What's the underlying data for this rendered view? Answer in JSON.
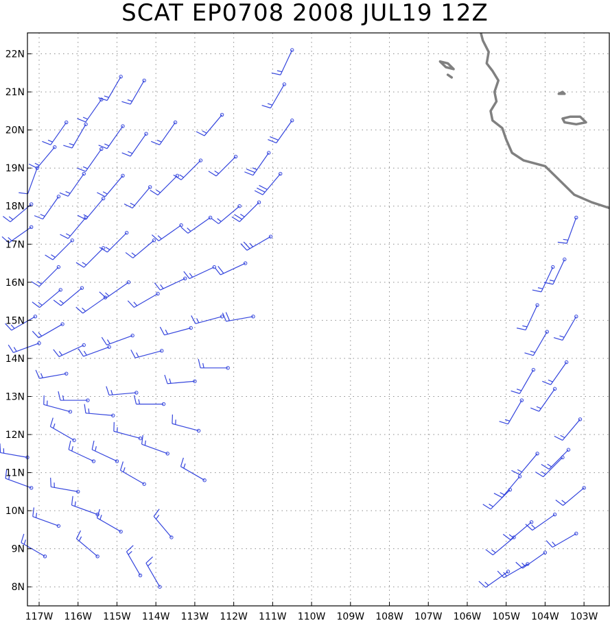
{
  "title": "SCAT EP0708 2008 JUL19 12Z",
  "map": {
    "lon_range": [
      -117.3,
      -102.35
    ],
    "lat_range": [
      7.5,
      22.55
    ],
    "grid": true,
    "barb_color": "#3344dd",
    "coast_color": "#808080",
    "lat_ticks": [
      {
        "value": 22,
        "label": "22N"
      },
      {
        "value": 21,
        "label": "21N"
      },
      {
        "value": 20,
        "label": "20N"
      },
      {
        "value": 19,
        "label": "19N"
      },
      {
        "value": 18,
        "label": "18N"
      },
      {
        "value": 17,
        "label": "17N"
      },
      {
        "value": 16,
        "label": "16N"
      },
      {
        "value": 15,
        "label": "15N"
      },
      {
        "value": 14,
        "label": "14N"
      },
      {
        "value": 13,
        "label": "13N"
      },
      {
        "value": 12,
        "label": "12N"
      },
      {
        "value": 11,
        "label": "11N"
      },
      {
        "value": 10,
        "label": "10N"
      },
      {
        "value": 9,
        "label": "9N"
      },
      {
        "value": 8,
        "label": "8N"
      }
    ],
    "lon_ticks": [
      {
        "value": -117,
        "label": "117W"
      },
      {
        "value": -116,
        "label": "116W"
      },
      {
        "value": -115,
        "label": "115W"
      },
      {
        "value": -114,
        "label": "114W"
      },
      {
        "value": -113,
        "label": "113W"
      },
      {
        "value": -112,
        "label": "112W"
      },
      {
        "value": -111,
        "label": "111W"
      },
      {
        "value": -110,
        "label": "110W"
      },
      {
        "value": -109,
        "label": "109W"
      },
      {
        "value": -108,
        "label": "108W"
      },
      {
        "value": -107,
        "label": "107W"
      },
      {
        "value": -106,
        "label": "106W"
      },
      {
        "value": -105,
        "label": "105W"
      },
      {
        "value": -104,
        "label": "104W"
      },
      {
        "value": -103,
        "label": "103W"
      }
    ],
    "coastline": [
      [
        -105.65,
        22.55
      ],
      [
        -105.6,
        22.35
      ],
      [
        -105.45,
        22.05
      ],
      [
        -105.5,
        21.75
      ],
      [
        -105.35,
        21.55
      ],
      [
        -105.2,
        21.3
      ],
      [
        -105.3,
        21.0
      ],
      [
        -105.25,
        20.75
      ],
      [
        -105.4,
        20.5
      ],
      [
        -105.35,
        20.25
      ],
      [
        -105.1,
        20.05
      ],
      [
        -105.0,
        19.75
      ],
      [
        -104.85,
        19.4
      ],
      [
        -104.55,
        19.2
      ],
      [
        -104.0,
        19.05
      ],
      [
        -103.75,
        18.8
      ],
      [
        -103.5,
        18.55
      ],
      [
        -103.25,
        18.3
      ],
      [
        -102.8,
        18.1
      ],
      [
        -102.35,
        17.95
      ]
    ],
    "islands": [
      [
        [
          -106.7,
          21.8
        ],
        [
          -106.55,
          21.65
        ],
        [
          -106.35,
          21.6
        ],
        [
          -106.5,
          21.75
        ]
      ],
      [
        [
          -106.5,
          21.45
        ],
        [
          -106.4,
          21.38
        ]
      ],
      [
        [
          -103.65,
          20.95
        ],
        [
          -103.55,
          21.0
        ],
        [
          -103.5,
          20.95
        ]
      ],
      [
        [
          -103.55,
          20.3
        ],
        [
          -103.35,
          20.35
        ],
        [
          -103.1,
          20.35
        ],
        [
          -102.95,
          20.2
        ],
        [
          -103.2,
          20.15
        ],
        [
          -103.5,
          20.2
        ]
      ]
    ]
  },
  "wind_barbs": [
    [
      -117.2,
      18.05,
      230,
      15
    ],
    [
      -117.2,
      17.45,
      235,
      15
    ],
    [
      -117.1,
      15.1,
      240,
      15
    ],
    [
      -117.0,
      14.4,
      250,
      15
    ],
    [
      -117.05,
      19.0,
      200,
      10
    ],
    [
      -116.6,
      19.55,
      220,
      15
    ],
    [
      -116.5,
      18.25,
      215,
      15
    ],
    [
      -116.5,
      16.4,
      225,
      15
    ],
    [
      -116.45,
      15.8,
      230,
      15
    ],
    [
      -116.4,
      14.9,
      240,
      15
    ],
    [
      -116.3,
      13.6,
      260,
      15
    ],
    [
      -116.2,
      12.6,
      285,
      15
    ],
    [
      -116.1,
      11.85,
      300,
      15
    ],
    [
      -116.0,
      10.5,
      280,
      15
    ],
    [
      -116.3,
      20.2,
      215,
      15
    ],
    [
      -116.15,
      17.1,
      225,
      15
    ],
    [
      -115.8,
      20.15,
      210,
      15
    ],
    [
      -115.85,
      18.85,
      215,
      15
    ],
    [
      -115.8,
      17.7,
      220,
      15
    ],
    [
      -115.9,
      15.85,
      230,
      15
    ],
    [
      -115.85,
      14.35,
      245,
      15
    ],
    [
      -115.75,
      12.9,
      270,
      15
    ],
    [
      -115.6,
      11.3,
      295,
      15
    ],
    [
      -115.5,
      9.9,
      290,
      15
    ],
    [
      -115.4,
      20.8,
      215,
      15
    ],
    [
      -115.4,
      19.5,
      215,
      15
    ],
    [
      -115.35,
      18.2,
      220,
      15
    ],
    [
      -115.35,
      16.9,
      225,
      15
    ],
    [
      -115.3,
      15.6,
      235,
      15
    ],
    [
      -115.2,
      14.3,
      250,
      15
    ],
    [
      -115.1,
      12.5,
      275,
      15
    ],
    [
      -115.0,
      11.3,
      295,
      15
    ],
    [
      -114.9,
      21.4,
      210,
      15
    ],
    [
      -114.85,
      20.1,
      215,
      15
    ],
    [
      -114.85,
      18.8,
      220,
      15
    ],
    [
      -114.75,
      17.3,
      225,
      15
    ],
    [
      -114.7,
      16.0,
      235,
      15
    ],
    [
      -114.6,
      14.6,
      250,
      15
    ],
    [
      -114.5,
      13.1,
      265,
      15
    ],
    [
      -114.4,
      11.9,
      285,
      15
    ],
    [
      -114.3,
      10.7,
      300,
      15
    ],
    [
      -114.4,
      8.3,
      330,
      15
    ],
    [
      -114.3,
      21.3,
      210,
      15
    ],
    [
      -114.25,
      19.9,
      215,
      15
    ],
    [
      -114.15,
      18.5,
      220,
      15
    ],
    [
      -114.05,
      17.1,
      230,
      15
    ],
    [
      -113.95,
      15.7,
      240,
      15
    ],
    [
      -113.85,
      14.2,
      255,
      15
    ],
    [
      -113.8,
      12.8,
      270,
      15
    ],
    [
      -113.7,
      11.5,
      290,
      15
    ],
    [
      -113.6,
      9.3,
      320,
      15
    ],
    [
      -113.5,
      20.2,
      215,
      15
    ],
    [
      -113.45,
      18.8,
      225,
      15
    ],
    [
      -113.35,
      17.5,
      235,
      15
    ],
    [
      -113.25,
      16.1,
      245,
      15
    ],
    [
      -113.1,
      14.8,
      255,
      15
    ],
    [
      -113.0,
      13.4,
      265,
      15
    ],
    [
      -112.9,
      12.1,
      285,
      15
    ],
    [
      -112.75,
      10.8,
      300,
      15
    ],
    [
      -112.85,
      19.2,
      225,
      15
    ],
    [
      -112.6,
      17.7,
      235,
      15
    ],
    [
      -112.5,
      16.4,
      245,
      15
    ],
    [
      -112.3,
      15.1,
      255,
      15
    ],
    [
      -112.15,
      13.75,
      270,
      15
    ],
    [
      -112.3,
      20.4,
      220,
      15
    ],
    [
      -111.95,
      19.3,
      225,
      15
    ],
    [
      -111.85,
      18.0,
      230,
      15
    ],
    [
      -111.7,
      16.5,
      245,
      20
    ],
    [
      -111.5,
      15.1,
      260,
      20
    ],
    [
      -111.1,
      19.4,
      215,
      25
    ],
    [
      -111.35,
      18.1,
      225,
      25
    ],
    [
      -111.05,
      17.2,
      240,
      25
    ],
    [
      -110.8,
      18.85,
      220,
      30
    ],
    [
      -110.5,
      20.25,
      215,
      20
    ],
    [
      -110.7,
      21.2,
      210,
      15
    ],
    [
      -110.5,
      22.1,
      205,
      15
    ],
    [
      -114.9,
      9.45,
      300,
      15
    ],
    [
      -115.5,
      8.8,
      310,
      15
    ],
    [
      -113.9,
      8.0,
      330,
      15
    ],
    [
      -116.5,
      9.6,
      290,
      15
    ],
    [
      -103.2,
      17.7,
      200,
      15
    ],
    [
      -103.5,
      16.6,
      205,
      15
    ],
    [
      -103.2,
      15.1,
      210,
      15
    ],
    [
      -103.45,
      13.9,
      215,
      15
    ],
    [
      -103.1,
      12.4,
      220,
      15
    ],
    [
      -103.0,
      10.6,
      230,
      15
    ],
    [
      -103.2,
      9.4,
      240,
      15
    ],
    [
      -103.8,
      16.4,
      205,
      15
    ],
    [
      -103.95,
      14.7,
      210,
      15
    ],
    [
      -103.75,
      13.2,
      215,
      15
    ],
    [
      -103.55,
      11.4,
      225,
      15
    ],
    [
      -103.75,
      9.9,
      235,
      15
    ],
    [
      -104.2,
      15.4,
      205,
      15
    ],
    [
      -104.3,
      13.7,
      210,
      15
    ],
    [
      -104.2,
      11.5,
      220,
      15
    ],
    [
      -104.35,
      9.7,
      230,
      15
    ],
    [
      -104.6,
      12.9,
      210,
      15
    ],
    [
      -104.65,
      10.9,
      220,
      15
    ],
    [
      -104.8,
      9.3,
      230,
      15
    ],
    [
      -104.45,
      8.6,
      240,
      15
    ],
    [
      -104.95,
      8.4,
      235,
      15
    ],
    [
      -104.9,
      10.55,
      225,
      15
    ],
    [
      -104.0,
      8.9,
      235,
      15
    ],
    [
      -103.4,
      11.6,
      225,
      15
    ],
    [
      -117.3,
      11.4,
      280,
      15
    ],
    [
      -117.2,
      10.6,
      290,
      15
    ],
    [
      -116.85,
      8.8,
      300,
      15
    ]
  ]
}
